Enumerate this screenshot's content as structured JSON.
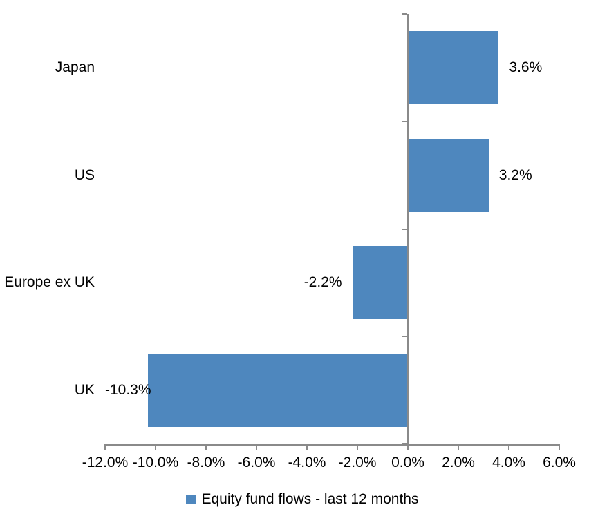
{
  "chart_data": {
    "type": "bar",
    "orientation": "horizontal",
    "title": "",
    "xlabel": "",
    "ylabel": "",
    "categories": [
      "Japan",
      "US",
      "Europe ex UK",
      "UK"
    ],
    "values": [
      3.6,
      3.2,
      -2.2,
      -10.3
    ],
    "value_labels": [
      "3.6%",
      "3.2%",
      "-2.2%",
      "-10.3%"
    ],
    "xlim": [
      -12,
      6
    ],
    "x_ticks": [
      -12,
      -10,
      -8,
      -6,
      -4,
      -2,
      0,
      2,
      4,
      6
    ],
    "x_tick_labels": [
      "-12.0%",
      "-10.0%",
      "-8.0%",
      "-6.0%",
      "-4.0%",
      "-2.0%",
      "0.0%",
      "2.0%",
      "4.0%",
      "6.0%"
    ],
    "grid": false,
    "legend_position": "bottom",
    "legend": [
      {
        "label": "Equity fund flows - last 12 months",
        "color": "#4e87be"
      }
    ],
    "colors": {
      "bar": "#4e87be",
      "axis": "#8a8a8a",
      "text": "#000000",
      "background": "#ffffff"
    }
  }
}
